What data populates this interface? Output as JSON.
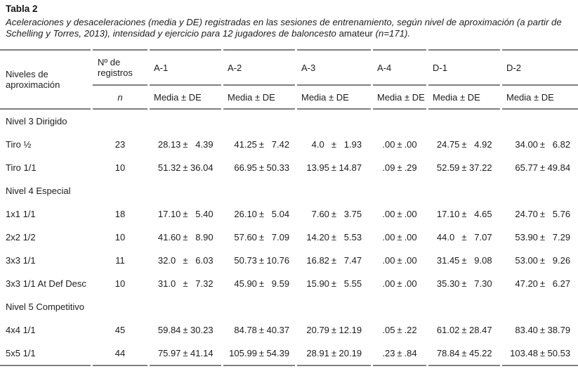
{
  "title": "Tabla 2",
  "caption": {
    "italic_before": "Aceleraciones y desaceleraciones (media y DE) registradas en las sesiones de entrenamiento, según nivel de aproximación (a partir de Schelling y Torres, 2013), intensidad y ejercicio para 12 jugadores de baloncesto ",
    "roman": "amateur",
    "italic_after": " (n=171)."
  },
  "table": {
    "stub_header": "Niveles de aproximación",
    "records_header": "Nº de registros",
    "records_sub": "n",
    "measure_sub": "Media ± DE",
    "plus_minus": "±",
    "columns": [
      "A-1",
      "A-2",
      "A-3",
      "A-4",
      "D-1",
      "D-2"
    ],
    "sections": [
      {
        "label": "Nivel 3 Dirigido",
        "rows": [
          {
            "name": "Tiro ½",
            "n": "23",
            "values": [
              [
                "28.13",
                "4.39"
              ],
              [
                "41.25",
                "7.42"
              ],
              [
                "4.0",
                "1.93"
              ],
              [
                ".00",
                ".00"
              ],
              [
                "24.75",
                "4.92"
              ],
              [
                "34.00",
                "6.82"
              ]
            ]
          },
          {
            "name": "Tiro 1/1",
            "n": "10",
            "values": [
              [
                "51.32",
                "36.04"
              ],
              [
                "66.95",
                "50.33"
              ],
              [
                "13.95",
                "14.87"
              ],
              [
                ".09",
                ".29"
              ],
              [
                "52.59",
                "37.22"
              ],
              [
                "65.77",
                "49.84"
              ]
            ]
          }
        ]
      },
      {
        "label": "Nivel 4 Especial",
        "rows": [
          {
            "name": "1x1 1/1",
            "n": "18",
            "values": [
              [
                "17.10",
                "5.40"
              ],
              [
                "26.10",
                "5.04"
              ],
              [
                "7.60",
                "3.75"
              ],
              [
                ".00",
                ".00"
              ],
              [
                "17.10",
                "4.65"
              ],
              [
                "24.70",
                "5.76"
              ]
            ]
          },
          {
            "name": "2x2 1/2",
            "n": "10",
            "values": [
              [
                "41.60",
                "8.90"
              ],
              [
                "57.60",
                "7.09"
              ],
              [
                "14.20",
                "5.53"
              ],
              [
                ".00",
                ".00"
              ],
              [
                "44.0",
                "7.07"
              ],
              [
                "53.90",
                "7.29"
              ]
            ]
          },
          {
            "name": "3x3 1/1",
            "n": "11",
            "values": [
              [
                "32.0",
                "6.03"
              ],
              [
                "50.73",
                "10.76"
              ],
              [
                "16.82",
                "7.47"
              ],
              [
                ".00",
                ".00"
              ],
              [
                "31.45",
                "9.08"
              ],
              [
                "53.00",
                "9.26"
              ]
            ]
          },
          {
            "name": "3x3 1/1 At Def Desc",
            "n": "10",
            "values": [
              [
                "31.0",
                "7.32"
              ],
              [
                "45.90",
                "9.59"
              ],
              [
                "15.90",
                "5.55"
              ],
              [
                ".00",
                ".00"
              ],
              [
                "35.30",
                "7.30"
              ],
              [
                "47.20",
                "6.27"
              ]
            ]
          }
        ]
      },
      {
        "label": "Nivel 5 Competitivo",
        "rows": [
          {
            "name": "4x4 1/1",
            "n": "45",
            "values": [
              [
                "59.84",
                "30.23"
              ],
              [
                "84.78",
                "40.37"
              ],
              [
                "20.79",
                "12.19"
              ],
              [
                ".05",
                ".22"
              ],
              [
                "61.02",
                "28.47"
              ],
              [
                "83.40",
                "38.79"
              ]
            ]
          },
          {
            "name": "5x5 1/1",
            "n": "44",
            "values": [
              [
                "75.97",
                "41.14"
              ],
              [
                "105.99",
                "54.39"
              ],
              [
                "28.91",
                "20.19"
              ],
              [
                ".23",
                ".84"
              ],
              [
                "78.84",
                "45.22"
              ],
              [
                "103.48",
                "50.53"
              ]
            ]
          }
        ]
      }
    ]
  }
}
